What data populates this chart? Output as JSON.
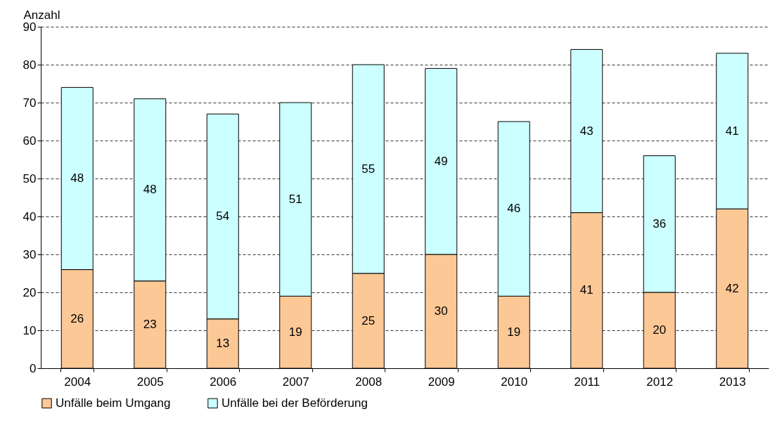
{
  "chart_data": {
    "type": "bar",
    "stacked": true,
    "ylabel": "Anzahl",
    "categories": [
      "2004",
      "2005",
      "2006",
      "2007",
      "2008",
      "2009",
      "2010",
      "2011",
      "2012",
      "2013"
    ],
    "series": [
      {
        "name": "Unfälle beim Umgang",
        "color": "#fcc896",
        "values": [
          26,
          23,
          13,
          19,
          25,
          30,
          19,
          41,
          20,
          42
        ]
      },
      {
        "name": "Unfälle bei der Beförderung",
        "color": "#ccffff",
        "values": [
          48,
          48,
          54,
          51,
          55,
          49,
          46,
          43,
          36,
          41
        ]
      }
    ],
    "ylim": [
      0,
      90
    ],
    "yticks": [
      0,
      10,
      20,
      30,
      40,
      50,
      60,
      70,
      80,
      90
    ],
    "grid": "y",
    "legend": "bottom",
    "data_labels": true
  }
}
